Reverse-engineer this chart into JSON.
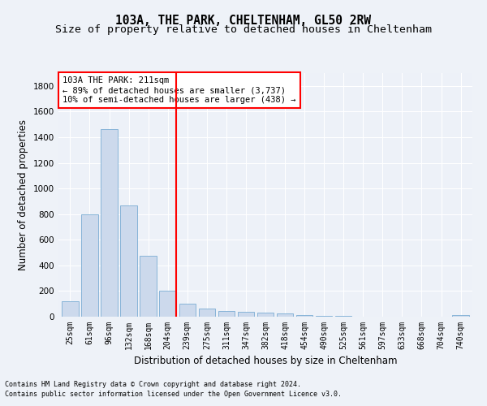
{
  "title1": "103A, THE PARK, CHELTENHAM, GL50 2RW",
  "title2": "Size of property relative to detached houses in Cheltenham",
  "xlabel": "Distribution of detached houses by size in Cheltenham",
  "ylabel": "Number of detached properties",
  "categories": [
    "25sqm",
    "61sqm",
    "96sqm",
    "132sqm",
    "168sqm",
    "204sqm",
    "239sqm",
    "275sqm",
    "311sqm",
    "347sqm",
    "382sqm",
    "418sqm",
    "454sqm",
    "490sqm",
    "525sqm",
    "561sqm",
    "597sqm",
    "633sqm",
    "668sqm",
    "704sqm",
    "740sqm"
  ],
  "values": [
    120,
    800,
    1460,
    865,
    475,
    200,
    100,
    65,
    42,
    35,
    30,
    25,
    15,
    5,
    5,
    3,
    2,
    2,
    2,
    2,
    15
  ],
  "bar_color": "#ccd9ec",
  "bar_edge_color": "#7aadd4",
  "vline_x_index": 5,
  "vline_color": "red",
  "annotation_line1": "103A THE PARK: 211sqm",
  "annotation_line2": "← 89% of detached houses are smaller (3,737)",
  "annotation_line3": "10% of semi-detached houses are larger (438) →",
  "annotation_box_color": "white",
  "annotation_box_edge": "red",
  "ylim": [
    0,
    1900
  ],
  "yticks": [
    0,
    200,
    400,
    600,
    800,
    1000,
    1200,
    1400,
    1600,
    1800
  ],
  "footnote1": "Contains HM Land Registry data © Crown copyright and database right 2024.",
  "footnote2": "Contains public sector information licensed under the Open Government Licence v3.0.",
  "bg_color": "#eef2f8",
  "plot_bg_color": "#edf1f8",
  "grid_color": "#ffffff",
  "title1_fontsize": 10.5,
  "title2_fontsize": 9.5,
  "tick_fontsize": 7,
  "ylabel_fontsize": 8.5,
  "xlabel_fontsize": 8.5,
  "footnote_fontsize": 6,
  "annot_fontsize": 7.5
}
